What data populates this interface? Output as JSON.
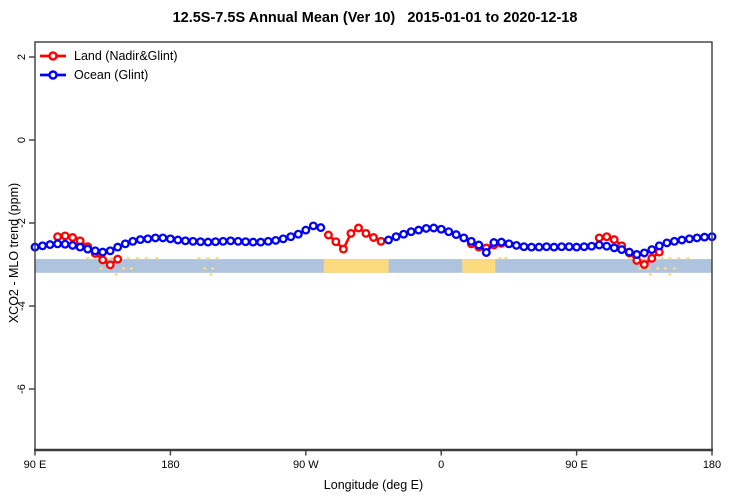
{
  "accent_colors": {
    "land": "#ff0000",
    "ocean": "#0000ff",
    "band_ocean": "#aec3de",
    "band_land": "#fcda7e",
    "axis": "#3c3c3c"
  },
  "chart_data": {
    "type": "line",
    "title": "12.5S-7.5S Annual Mean (Ver 10)   2015-01-01 to 2020-12-18",
    "xlabel": "Longitude (deg E)",
    "ylabel": "XCO2 - MLO trend (ppm)",
    "xlim": [
      90,
      540
    ],
    "ylim": [
      -7.5,
      2.4
    ],
    "grid": false,
    "legend_position": "top-left-inside",
    "x_axis": {
      "ticks": [
        {
          "lon": 90,
          "label": "90 E"
        },
        {
          "lon": 180,
          "label": "180"
        },
        {
          "lon": 270,
          "label": "90 W"
        },
        {
          "lon": 360,
          "label": "0"
        },
        {
          "lon": 450,
          "label": "90 E"
        },
        {
          "lon": 540,
          "label": "180"
        }
      ]
    },
    "y_axis": {
      "ticks": [
        {
          "v": 2,
          "label": "2"
        },
        {
          "v": 0,
          "label": "0"
        },
        {
          "v": -2,
          "label": "-2"
        },
        {
          "v": -4,
          "label": "-4"
        },
        {
          "v": -6,
          "label": "-6"
        }
      ]
    },
    "surface_band": {
      "description": "land/ocean indicator strip at about -2.9 to -3.2 ppm",
      "value_top": -2.87,
      "value_bottom": -3.2,
      "ocean_color": "#aec3de",
      "land_color": "#fcda7e",
      "land_segments_lon": [
        [
          282,
          325
        ],
        [
          374,
          396
        ]
      ],
      "island_speckles": {
        "row0_lons": [
          124,
          129,
          134,
          140,
          146,
          151,
          157,
          163,
          170,
          198,
          204,
          210,
          398,
          402,
          484,
          489,
          494,
          500,
          506,
          511,
          517,
          523
        ],
        "row1_lons": [
          133,
          138,
          148,
          153,
          202,
          207,
          491,
          497,
          503,
          508,
          514
        ],
        "row2_lons": [
          143,
          206,
          498,
          511
        ]
      }
    },
    "series": [
      {
        "name": "Land (Nadir&Glint)",
        "color": "#ff0000",
        "marker": "open-circle",
        "segments": [
          [
            [
              105,
              -2.33
            ],
            [
              110,
              -2.31
            ],
            [
              115,
              -2.35
            ],
            [
              120,
              -2.43
            ],
            [
              125,
              -2.57
            ],
            [
              130,
              -2.73
            ],
            [
              135,
              -2.89
            ],
            [
              140,
              -3.01
            ],
            [
              145,
              -2.87
            ]
          ],
          [
            [
              285,
              -2.29
            ],
            [
              290,
              -2.45
            ],
            [
              295,
              -2.63
            ],
            [
              300,
              -2.25
            ],
            [
              305,
              -2.12
            ],
            [
              310,
              -2.25
            ],
            [
              315,
              -2.35
            ],
            [
              320,
              -2.44
            ]
          ],
          [
            [
              375,
              -2.36
            ],
            [
              380,
              -2.5
            ],
            [
              385,
              -2.58
            ],
            [
              390,
              -2.6
            ],
            [
              395,
              -2.53
            ],
            [
              400,
              -2.49
            ]
          ],
          [
            [
              465,
              -2.36
            ],
            [
              470,
              -2.33
            ],
            [
              475,
              -2.4
            ],
            [
              480,
              -2.55
            ],
            [
              485,
              -2.72
            ],
            [
              490,
              -2.9
            ],
            [
              495,
              -3.0
            ],
            [
              500,
              -2.85
            ],
            [
              505,
              -2.7
            ]
          ]
        ]
      },
      {
        "name": "Ocean (Glint)",
        "color": "#0000ff",
        "marker": "open-circle",
        "segments": [
          [
            [
              90,
              -2.58
            ],
            [
              95,
              -2.55
            ],
            [
              100,
              -2.52
            ],
            [
              105,
              -2.5
            ],
            [
              110,
              -2.51
            ],
            [
              115,
              -2.54
            ],
            [
              120,
              -2.58
            ],
            [
              125,
              -2.63
            ],
            [
              130,
              -2.67
            ],
            [
              135,
              -2.7
            ],
            [
              140,
              -2.67
            ],
            [
              145,
              -2.58
            ],
            [
              150,
              -2.5
            ],
            [
              155,
              -2.44
            ],
            [
              160,
              -2.4
            ],
            [
              165,
              -2.38
            ],
            [
              170,
              -2.36
            ],
            [
              175,
              -2.36
            ],
            [
              180,
              -2.38
            ],
            [
              185,
              -2.41
            ],
            [
              190,
              -2.43
            ],
            [
              195,
              -2.44
            ],
            [
              200,
              -2.45
            ],
            [
              205,
              -2.46
            ],
            [
              210,
              -2.45
            ],
            [
              215,
              -2.44
            ],
            [
              220,
              -2.43
            ],
            [
              225,
              -2.44
            ],
            [
              230,
              -2.45
            ],
            [
              235,
              -2.46
            ],
            [
              240,
              -2.46
            ],
            [
              245,
              -2.44
            ],
            [
              250,
              -2.42
            ],
            [
              255,
              -2.38
            ],
            [
              260,
              -2.33
            ],
            [
              265,
              -2.27
            ],
            [
              270,
              -2.17
            ],
            [
              275,
              -2.07
            ],
            [
              280,
              -2.11
            ]
          ],
          [
            [
              325,
              -2.41
            ],
            [
              330,
              -2.33
            ],
            [
              335,
              -2.27
            ],
            [
              340,
              -2.21
            ],
            [
              345,
              -2.17
            ],
            [
              350,
              -2.13
            ],
            [
              355,
              -2.12
            ],
            [
              360,
              -2.15
            ],
            [
              365,
              -2.21
            ],
            [
              370,
              -2.28
            ],
            [
              375,
              -2.36
            ],
            [
              380,
              -2.44
            ],
            [
              385,
              -2.53
            ],
            [
              390,
              -2.71
            ],
            [
              395,
              -2.47
            ],
            [
              400,
              -2.46
            ],
            [
              405,
              -2.5
            ],
            [
              410,
              -2.54
            ],
            [
              415,
              -2.57
            ],
            [
              420,
              -2.58
            ],
            [
              425,
              -2.58
            ],
            [
              430,
              -2.57
            ],
            [
              435,
              -2.58
            ],
            [
              440,
              -2.57
            ],
            [
              445,
              -2.57
            ],
            [
              450,
              -2.58
            ],
            [
              455,
              -2.57
            ],
            [
              460,
              -2.56
            ],
            [
              465,
              -2.53
            ],
            [
              470,
              -2.56
            ],
            [
              475,
              -2.6
            ],
            [
              480,
              -2.64
            ],
            [
              485,
              -2.7
            ],
            [
              490,
              -2.76
            ],
            [
              495,
              -2.72
            ],
            [
              500,
              -2.64
            ],
            [
              505,
              -2.55
            ],
            [
              510,
              -2.48
            ],
            [
              515,
              -2.44
            ],
            [
              520,
              -2.41
            ],
            [
              525,
              -2.38
            ],
            [
              530,
              -2.36
            ],
            [
              535,
              -2.34
            ],
            [
              540,
              -2.33
            ]
          ]
        ]
      }
    ]
  }
}
